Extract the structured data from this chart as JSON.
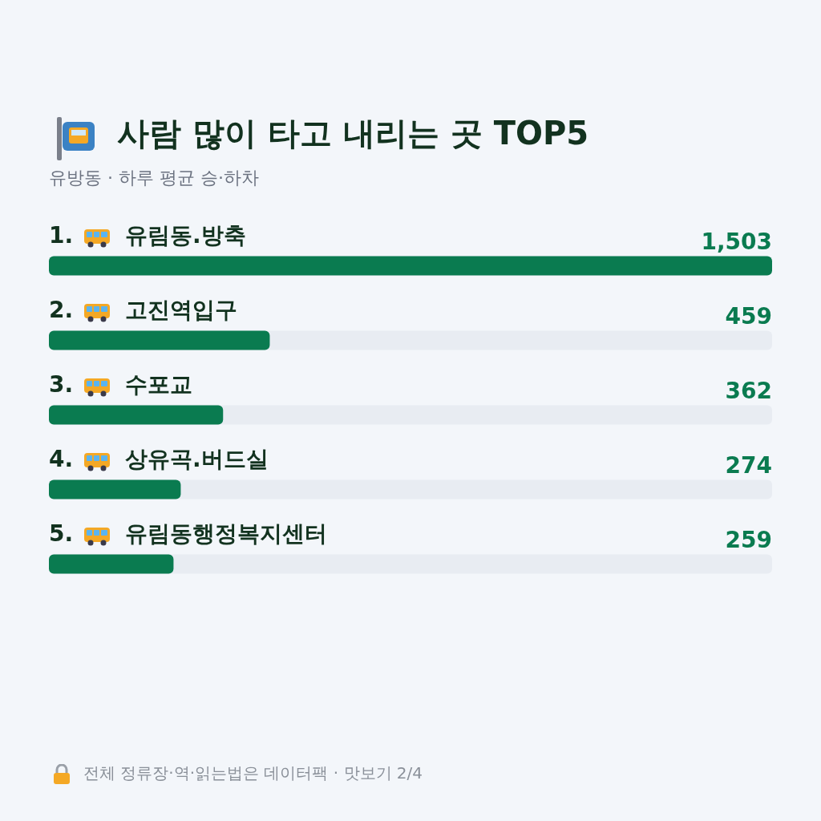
{
  "chart_data": {
    "type": "bar",
    "orientation": "horizontal",
    "title": "사람 많이 타고 내리는 곳 TOP5",
    "subtitle": "유방동 · 하루 평균 승·하차",
    "categories": [
      "1. 유림동.방축",
      "2. 고진역입구",
      "3. 수포교",
      "4. 상유곡.버드실",
      "5. 유림동행정복지센터"
    ],
    "values": [
      1503,
      459,
      362,
      274,
      259
    ],
    "color": "#0a7b50",
    "value_labels": [
      "1,503",
      "459",
      "362",
      "274",
      "259"
    ],
    "annotations": [
      "전체 정류장·역·읽는법은 데이터팩 · 맛보기 2/4"
    ]
  }
}
